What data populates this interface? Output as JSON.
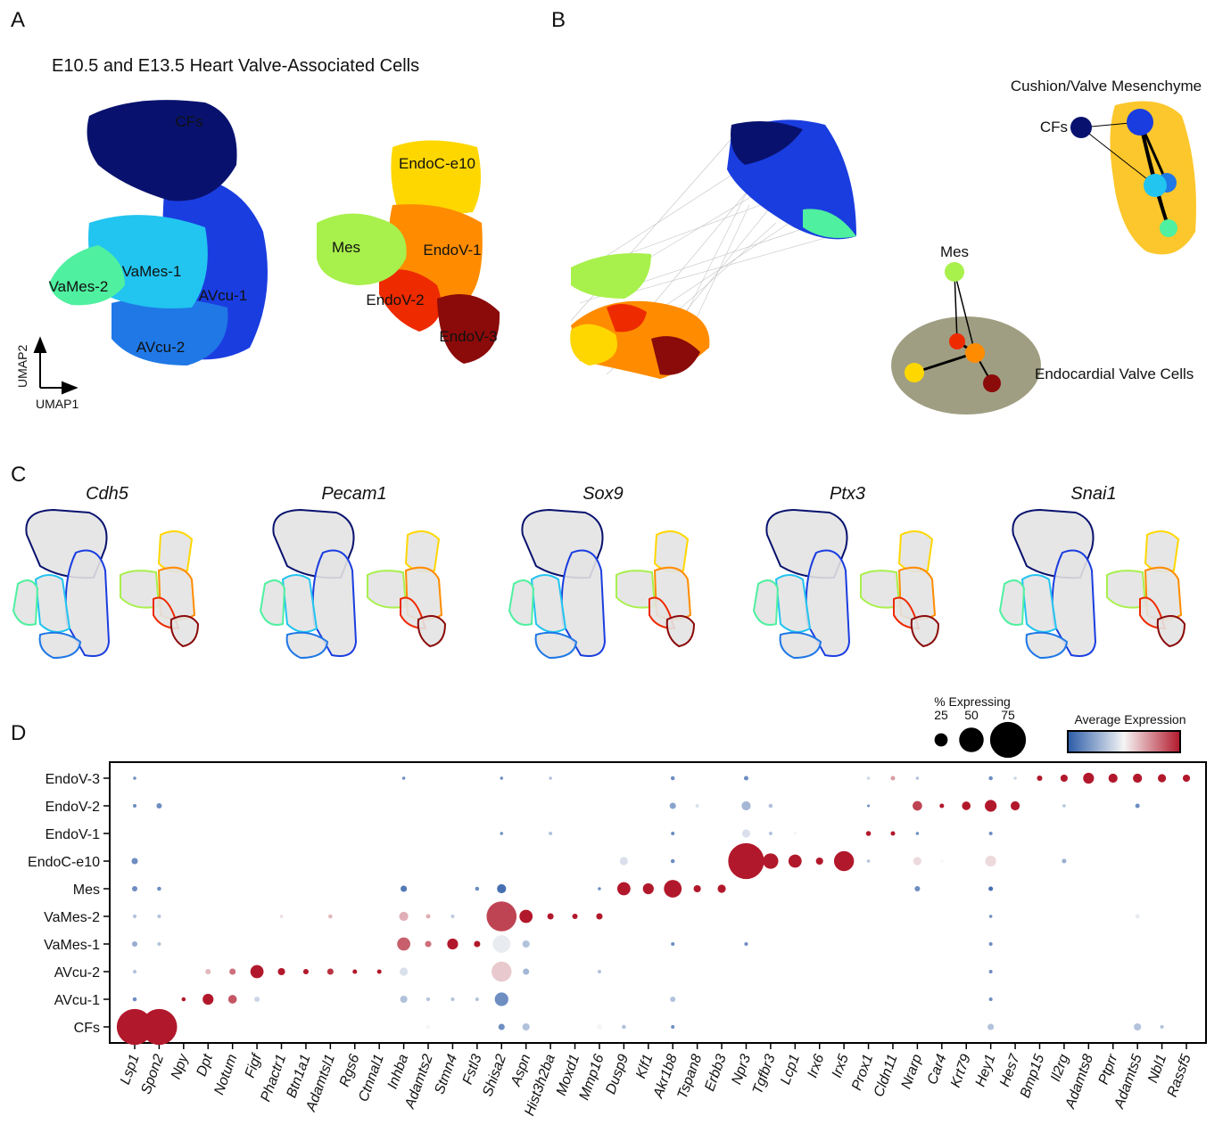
{
  "panel_labels": [
    "A",
    "B",
    "C",
    "D"
  ],
  "panel_a": {
    "title": "E10.5 and E13.5 Heart Valve-Associated Cells",
    "clusters": [
      "CFs",
      "VaMes-2",
      "VaMes-1",
      "AVcu-1",
      "AVcu-2",
      "EndoC-e10",
      "Mes",
      "EndoV-1",
      "EndoV-2",
      "EndoV-3"
    ],
    "axis_labels": {
      "x": "UMAP1",
      "y": "UMAP2"
    }
  },
  "panel_b": {
    "nodes": [
      "CFs",
      "Mes"
    ],
    "regions": [
      "Cushion/Valve Mesenchyme",
      "Endocardial Valve Cells"
    ]
  },
  "panel_c": {
    "genes": [
      "Cdh5",
      "Pecam1",
      "Sox9",
      "Ptx3",
      "Snai1"
    ]
  },
  "chart_data": {
    "type": "dot",
    "categories": [
      "Lsp1",
      "Spon2",
      "Npy",
      "Dpt",
      "Notum",
      "Figf",
      "Phactr1",
      "Btn1a1",
      "Adamtsl1",
      "Rgs6",
      "Ctnnal1",
      "Inhba",
      "Adamts2",
      "Stmn4",
      "Fstl3",
      "Shisa2",
      "Aspn",
      "Hist3h2ba",
      "Moxd1",
      "Mmp16",
      "Dusp9",
      "Klf1",
      "Akr1b8",
      "Tspan8",
      "Erbb3",
      "Npr3",
      "Tgfbr3",
      "Lcp1",
      "Irx6",
      "Irx5",
      "Prox1",
      "Cldn11",
      "Nrarp",
      "Car4",
      "Krt79",
      "Hey1",
      "Hes7",
      "Bmp15",
      "Il2rg",
      "Adamts8",
      "Ptprr",
      "Adamts5",
      "Nbl1",
      "Rassf5"
    ],
    "rows": [
      "EndoV-3",
      "EndoV-2",
      "EndoV-1",
      "EndoC-e10",
      "Mes",
      "VaMes-2",
      "VaMes-1",
      "AVcu-2",
      "AVcu-1",
      "CFs"
    ],
    "points": [
      {
        "x": "Lsp1",
        "y": "CFs",
        "size": 75,
        "value": 2.5
      },
      {
        "x": "Spon2",
        "y": "CFs",
        "size": 75,
        "value": 2.5
      },
      {
        "x": "Adamts2",
        "y": "CFs",
        "size": 5,
        "value": 0
      },
      {
        "x": "Shisa2",
        "y": "CFs",
        "size": 10,
        "value": -1
      },
      {
        "x": "Aspn",
        "y": "CFs",
        "size": 12,
        "value": -0.5
      },
      {
        "x": "Mmp16",
        "y": "CFs",
        "size": 8,
        "value": 0
      },
      {
        "x": "Dusp9",
        "y": "CFs",
        "size": 5,
        "value": -0.5
      },
      {
        "x": "Akr1b8",
        "y": "CFs",
        "size": 4,
        "value": -1
      },
      {
        "x": "Hey1",
        "y": "CFs",
        "size": 10,
        "value": -0.5
      },
      {
        "x": "Adamts5",
        "y": "CFs",
        "size": 12,
        "value": -0.5
      },
      {
        "x": "Nbl1",
        "y": "CFs",
        "size": 4,
        "value": -0.5
      },
      {
        "x": "Lsp1",
        "y": "AVcu-1",
        "size": 5,
        "value": -1
      },
      {
        "x": "Npy",
        "y": "AVcu-1",
        "size": 5,
        "value": 2.5
      },
      {
        "x": "Dpt",
        "y": "AVcu-1",
        "size": 20,
        "value": 2.5
      },
      {
        "x": "Notum",
        "y": "AVcu-1",
        "size": 15,
        "value": 1.8
      },
      {
        "x": "Figf",
        "y": "AVcu-1",
        "size": 8,
        "value": -0.3
      },
      {
        "x": "Inhba",
        "y": "AVcu-1",
        "size": 12,
        "value": -0.5
      },
      {
        "x": "Adamts2",
        "y": "AVcu-1",
        "size": 4,
        "value": -0.5
      },
      {
        "x": "Stmn4",
        "y": "AVcu-1",
        "size": 4,
        "value": -0.5
      },
      {
        "x": "Fstl3",
        "y": "AVcu-1",
        "size": 4,
        "value": -0.5
      },
      {
        "x": "Shisa2",
        "y": "AVcu-1",
        "size": 26,
        "value": -1
      },
      {
        "x": "Akr1b8",
        "y": "AVcu-1",
        "size": 8,
        "value": -0.5
      },
      {
        "x": "Hey1",
        "y": "AVcu-1",
        "size": 4,
        "value": -1
      },
      {
        "x": "Lsp1",
        "y": "AVcu-2",
        "size": 4,
        "value": -0.5
      },
      {
        "x": "Dpt",
        "y": "AVcu-2",
        "size": 8,
        "value": 0.7
      },
      {
        "x": "Notum",
        "y": "AVcu-2",
        "size": 10,
        "value": 1.5
      },
      {
        "x": "Figf",
        "y": "AVcu-2",
        "size": 25,
        "value": 2.5
      },
      {
        "x": "Phactr1",
        "y": "AVcu-2",
        "size": 12,
        "value": 2.5
      },
      {
        "x": "Btn1a1",
        "y": "AVcu-2",
        "size": 8,
        "value": 2.5
      },
      {
        "x": "Adamtsl1",
        "y": "AVcu-2",
        "size": 10,
        "value": 2.2
      },
      {
        "x": "Rgs6",
        "y": "AVcu-2",
        "size": 6,
        "value": 2.5
      },
      {
        "x": "Ctnnal1",
        "y": "AVcu-2",
        "size": 6,
        "value": 2.5
      },
      {
        "x": "Inhba",
        "y": "AVcu-2",
        "size": 14,
        "value": -0.2
      },
      {
        "x": "Shisa2",
        "y": "AVcu-2",
        "size": 40,
        "value": 0.5
      },
      {
        "x": "Aspn",
        "y": "AVcu-2",
        "size": 10,
        "value": -0.6
      },
      {
        "x": "Mmp16",
        "y": "AVcu-2",
        "size": 4,
        "value": -0.5
      },
      {
        "x": "Hey1",
        "y": "AVcu-2",
        "size": 4,
        "value": -1
      },
      {
        "x": "Lsp1",
        "y": "VaMes-1",
        "size": 8,
        "value": -0.7
      },
      {
        "x": "Spon2",
        "y": "VaMes-1",
        "size": 4,
        "value": -0.5
      },
      {
        "x": "Inhba",
        "y": "VaMes-1",
        "size": 25,
        "value": 1.7
      },
      {
        "x": "Adamts2",
        "y": "VaMes-1",
        "size": 10,
        "value": 1.5
      },
      {
        "x": "Stmn4",
        "y": "VaMes-1",
        "size": 20,
        "value": 2.5
      },
      {
        "x": "Fstl3",
        "y": "VaMes-1",
        "size": 10,
        "value": 2.5
      },
      {
        "x": "Shisa2",
        "y": "VaMes-1",
        "size": 35,
        "value": -0.1
      },
      {
        "x": "Aspn",
        "y": "VaMes-1",
        "size": 12,
        "value": -0.5
      },
      {
        "x": "Akr1b8",
        "y": "VaMes-1",
        "size": 4,
        "value": -1
      },
      {
        "x": "Npr3",
        "y": "VaMes-1",
        "size": 4,
        "value": -1
      },
      {
        "x": "Hey1",
        "y": "VaMes-1",
        "size": 4,
        "value": -1
      },
      {
        "x": "Lsp1",
        "y": "VaMes-2",
        "size": 4,
        "value": -0.5
      },
      {
        "x": "Spon2",
        "y": "VaMes-2",
        "size": 4,
        "value": -0.5
      },
      {
        "x": "Phactr1",
        "y": "VaMes-2",
        "size": 3,
        "value": 0.3
      },
      {
        "x": "Adamtsl1",
        "y": "VaMes-2",
        "size": 5,
        "value": 0.7
      },
      {
        "x": "Inhba",
        "y": "VaMes-2",
        "size": 16,
        "value": 0.8
      },
      {
        "x": "Adamts2",
        "y": "VaMes-2",
        "size": 6,
        "value": 0.8
      },
      {
        "x": "Stmn4",
        "y": "VaMes-2",
        "size": 4,
        "value": -0.4
      },
      {
        "x": "Shisa2",
        "y": "VaMes-2",
        "size": 62,
        "value": 2
      },
      {
        "x": "Aspn",
        "y": "VaMes-2",
        "size": 25,
        "value": 2.5
      },
      {
        "x": "Hist3h2ba",
        "y": "VaMes-2",
        "size": 10,
        "value": 2.5
      },
      {
        "x": "Moxd1",
        "y": "VaMes-2",
        "size": 8,
        "value": 2.5
      },
      {
        "x": "Mmp16",
        "y": "VaMes-2",
        "size": 10,
        "value": 2.5
      },
      {
        "x": "Hey1",
        "y": "VaMes-2",
        "size": 3,
        "value": -1
      },
      {
        "x": "Adamts5",
        "y": "VaMes-2",
        "size": 6,
        "value": -0.1
      },
      {
        "x": "Lsp1",
        "y": "Mes",
        "size": 8,
        "value": -1
      },
      {
        "x": "Spon2",
        "y": "Mes",
        "size": 5,
        "value": -1
      },
      {
        "x": "Inhba",
        "y": "Mes",
        "size": 10,
        "value": -1.2
      },
      {
        "x": "Fstl3",
        "y": "Mes",
        "size": 5,
        "value": -1
      },
      {
        "x": "Shisa2",
        "y": "Mes",
        "size": 16,
        "value": -1.3
      },
      {
        "x": "Mmp16",
        "y": "Mes",
        "size": 3,
        "value": -1
      },
      {
        "x": "Dusp9",
        "y": "Mes",
        "size": 25,
        "value": 2.5
      },
      {
        "x": "Klf1",
        "y": "Mes",
        "size": 20,
        "value": 2.5
      },
      {
        "x": "Akr1b8",
        "y": "Mes",
        "size": 35,
        "value": 2.5
      },
      {
        "x": "Tspan8",
        "y": "Mes",
        "size": 12,
        "value": 2.5
      },
      {
        "x": "Erbb3",
        "y": "Mes",
        "size": 14,
        "value": 2.5
      },
      {
        "x": "Nrarp",
        "y": "Mes",
        "size": 8,
        "value": -1
      },
      {
        "x": "Hey1",
        "y": "Mes",
        "size": 6,
        "value": -1.3
      },
      {
        "x": "Lsp1",
        "y": "EndoC-e10",
        "size": 10,
        "value": -1
      },
      {
        "x": "Dusp9",
        "y": "EndoC-e10",
        "size": 14,
        "value": -0.2
      },
      {
        "x": "Akr1b8",
        "y": "EndoC-e10",
        "size": 5,
        "value": -1
      },
      {
        "x": "Npr3",
        "y": "EndoC-e10",
        "size": 75,
        "value": 2.5
      },
      {
        "x": "Tgfbr3",
        "y": "EndoC-e10",
        "size": 30,
        "value": 2.5
      },
      {
        "x": "Lcp1",
        "y": "EndoC-e10",
        "size": 25,
        "value": 2.5
      },
      {
        "x": "Irx6",
        "y": "EndoC-e10",
        "size": 12,
        "value": 2.5
      },
      {
        "x": "Irx5",
        "y": "EndoC-e10",
        "size": 40,
        "value": 2.5
      },
      {
        "x": "Prox1",
        "y": "EndoC-e10",
        "size": 3,
        "value": -0.5
      },
      {
        "x": "Nrarp",
        "y": "EndoC-e10",
        "size": 14,
        "value": 0.3
      },
      {
        "x": "Car4",
        "y": "EndoC-e10",
        "size": 3,
        "value": 0
      },
      {
        "x": "Hey1",
        "y": "EndoC-e10",
        "size": 20,
        "value": 0.3
      },
      {
        "x": "Il2rg",
        "y": "EndoC-e10",
        "size": 6,
        "value": -0.7
      },
      {
        "x": "Shisa2",
        "y": "EndoV-1",
        "size": 3,
        "value": -1
      },
      {
        "x": "Hist3h2ba",
        "y": "EndoV-1",
        "size": 4,
        "value": -0.5
      },
      {
        "x": "Akr1b8",
        "y": "EndoV-1",
        "size": 4,
        "value": -1
      },
      {
        "x": "Npr3",
        "y": "EndoV-1",
        "size": 14,
        "value": -0.2
      },
      {
        "x": "Tgfbr3",
        "y": "EndoV-1",
        "size": 4,
        "value": -0.5
      },
      {
        "x": "Lcp1",
        "y": "EndoV-1",
        "size": 3,
        "value": 0
      },
      {
        "x": "Prox1",
        "y": "EndoV-1",
        "size": 7,
        "value": 2.5
      },
      {
        "x": "Cldn11",
        "y": "EndoV-1",
        "size": 6,
        "value": 2.5
      },
      {
        "x": "Nrarp",
        "y": "EndoV-1",
        "size": 3,
        "value": -1
      },
      {
        "x": "Hey1",
        "y": "EndoV-1",
        "size": 4,
        "value": -1
      },
      {
        "x": "Lsp1",
        "y": "EndoV-2",
        "size": 4,
        "value": -1
      },
      {
        "x": "Spon2",
        "y": "EndoV-2",
        "size": 8,
        "value": -1
      },
      {
        "x": "Akr1b8",
        "y": "EndoV-2",
        "size": 10,
        "value": -0.8
      },
      {
        "x": "Tspan8",
        "y": "EndoV-2",
        "size": 4,
        "value": -0.2
      },
      {
        "x": "Npr3",
        "y": "EndoV-2",
        "size": 16,
        "value": -0.6
      },
      {
        "x": "Tgfbr3",
        "y": "EndoV-2",
        "size": 5,
        "value": -0.5
      },
      {
        "x": "Prox1",
        "y": "EndoV-2",
        "size": 2,
        "value": -1
      },
      {
        "x": "Nrarp",
        "y": "EndoV-2",
        "size": 17,
        "value": 2
      },
      {
        "x": "Car4",
        "y": "EndoV-2",
        "size": 6,
        "value": 2.5
      },
      {
        "x": "Krt79",
        "y": "EndoV-2",
        "size": 15,
        "value": 2.5
      },
      {
        "x": "Hey1",
        "y": "EndoV-2",
        "size": 22,
        "value": 2.5
      },
      {
        "x": "Hes7",
        "y": "EndoV-2",
        "size": 16,
        "value": 2.5
      },
      {
        "x": "Il2rg",
        "y": "EndoV-2",
        "size": 3,
        "value": -0.5
      },
      {
        "x": "Adamts5",
        "y": "EndoV-2",
        "size": 6,
        "value": -1
      },
      {
        "x": "Lsp1",
        "y": "EndoV-3",
        "size": 3,
        "value": -1
      },
      {
        "x": "Inhba",
        "y": "EndoV-3",
        "size": 3,
        "value": -1
      },
      {
        "x": "Shisa2",
        "y": "EndoV-3",
        "size": 3,
        "value": -1
      },
      {
        "x": "Hist3h2ba",
        "y": "EndoV-3",
        "size": 3,
        "value": -0.5
      },
      {
        "x": "Akr1b8",
        "y": "EndoV-3",
        "size": 5,
        "value": -1
      },
      {
        "x": "Npr3",
        "y": "EndoV-3",
        "size": 6,
        "value": -1
      },
      {
        "x": "Prox1",
        "y": "EndoV-3",
        "size": 3,
        "value": -0.3
      },
      {
        "x": "Cldn11",
        "y": "EndoV-3",
        "size": 6,
        "value": 1
      },
      {
        "x": "Nrarp",
        "y": "EndoV-3",
        "size": 3,
        "value": -0.5
      },
      {
        "x": "Hey1",
        "y": "EndoV-3",
        "size": 5,
        "value": -1
      },
      {
        "x": "Hes7",
        "y": "EndoV-3",
        "size": 3,
        "value": -0.3
      },
      {
        "x": "Bmp15",
        "y": "EndoV-3",
        "size": 8,
        "value": 2.5
      },
      {
        "x": "Il2rg",
        "y": "EndoV-3",
        "size": 12,
        "value": 2.5
      },
      {
        "x": "Adamts8",
        "y": "EndoV-3",
        "size": 20,
        "value": 2.5
      },
      {
        "x": "Ptprr",
        "y": "EndoV-3",
        "size": 16,
        "value": 2.5
      },
      {
        "x": "Adamts5",
        "y": "EndoV-3",
        "size": 16,
        "value": 2.5
      },
      {
        "x": "Nbl1",
        "y": "EndoV-3",
        "size": 14,
        "value": 2.5
      },
      {
        "x": "Rassf5",
        "y": "EndoV-3",
        "size": 12,
        "value": 2.5
      }
    ],
    "size_legend": {
      "title": "% Expressing",
      "values": [
        25,
        50,
        75
      ]
    },
    "color_legend": {
      "title": "Average Expression"
    },
    "clim": [
      -1.5,
      2.5
    ],
    "colors": [
      "#2b5ba8",
      "#f5f5f5",
      "#b2182b"
    ]
  }
}
